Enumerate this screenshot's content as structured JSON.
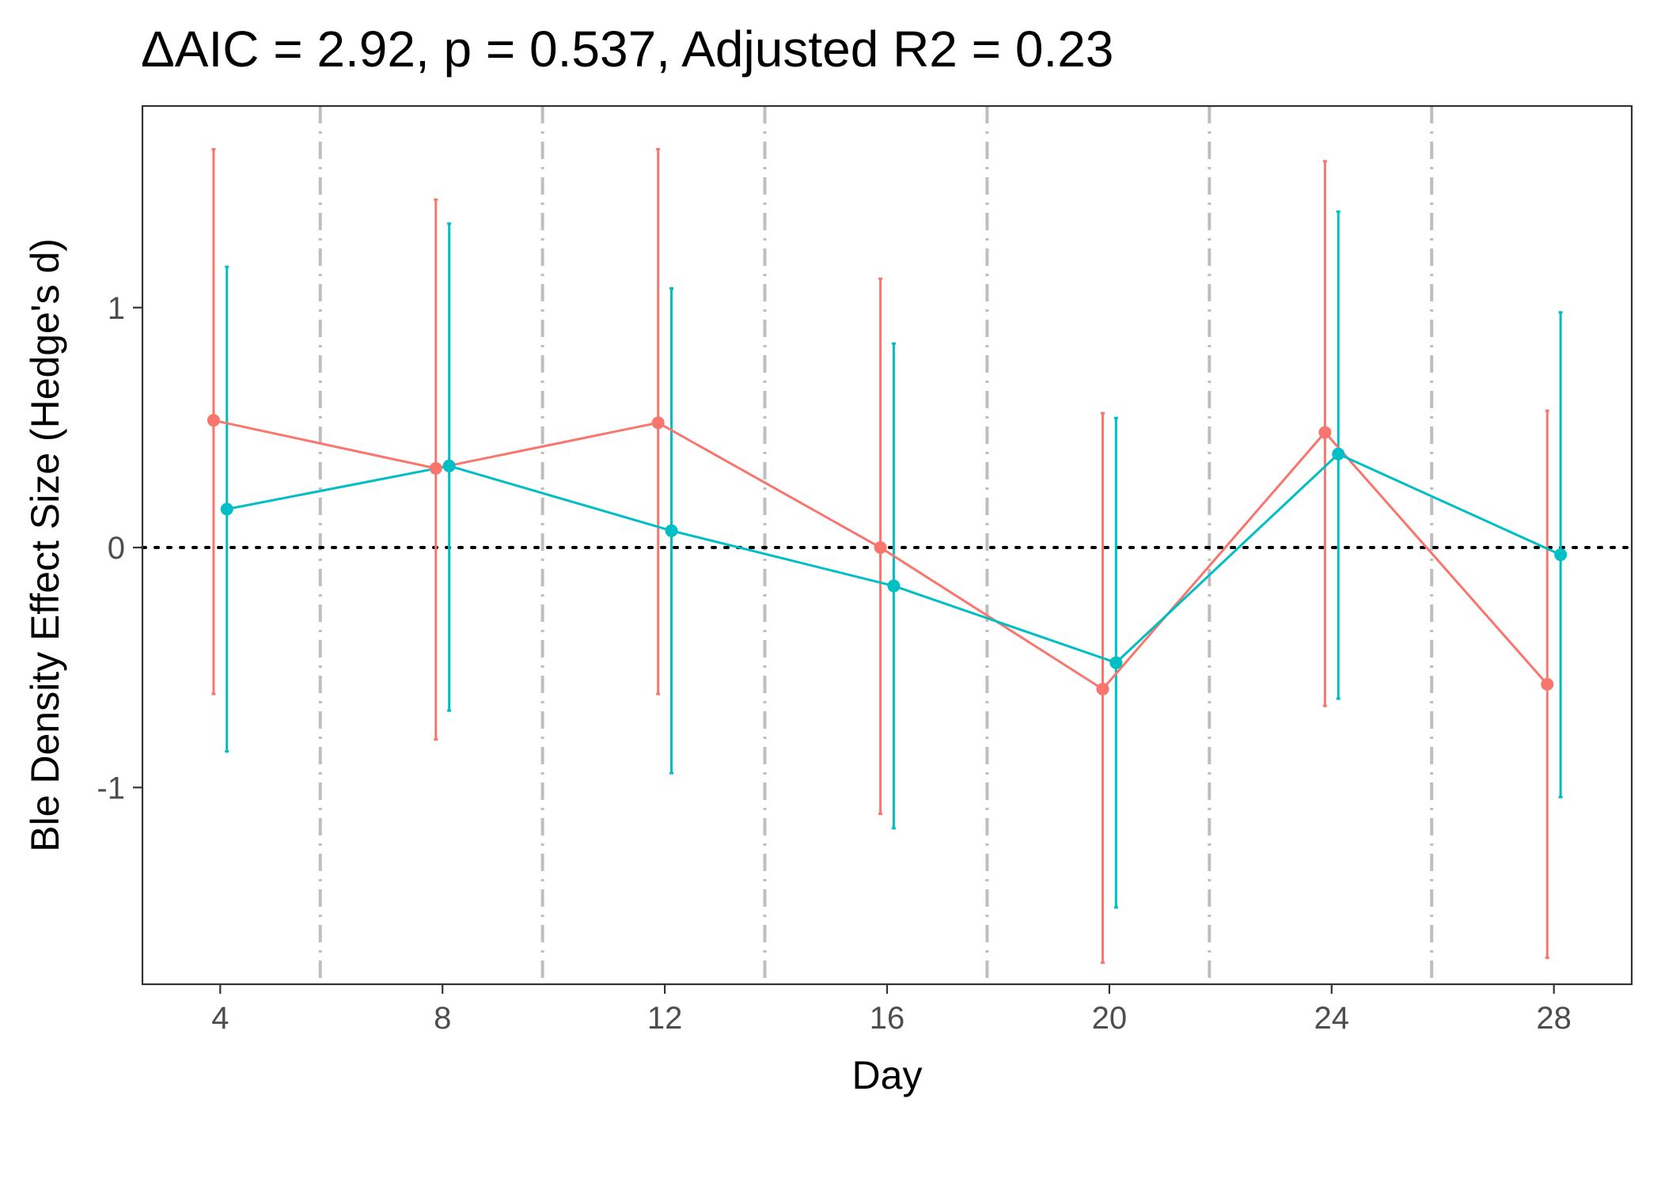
{
  "chart_data": {
    "type": "line",
    "title": "ΔAIC = 2.92, p = 0.537, Adjusted R2 = 0.23",
    "xlabel": "Day",
    "ylabel": "Ble Density Effect Size (Hedge's d)",
    "x_ticks": [
      "4",
      "8",
      "12",
      "16",
      "20",
      "24",
      "28"
    ],
    "y_ticks": [
      "-1",
      "0",
      "1"
    ],
    "xlim": [
      2.6,
      29.4
    ],
    "ylim": [
      -1.82,
      1.84
    ],
    "grid": false,
    "legend": "none",
    "reference_line_y": 0,
    "vertical_separators_x": [
      5.8,
      9.8,
      13.8,
      17.8,
      21.8,
      25.8
    ],
    "series": [
      {
        "color": "#F8766D",
        "x": [
          3.88,
          7.88,
          11.88,
          15.88,
          19.88,
          23.88,
          27.88
        ],
        "y": [
          0.53,
          0.33,
          0.52,
          0.0,
          -0.59,
          0.48,
          -0.57
        ],
        "ci_low": [
          -0.61,
          -0.8,
          -0.61,
          -1.11,
          -1.73,
          -0.66,
          -1.71
        ],
        "ci_high": [
          1.66,
          1.45,
          1.66,
          1.12,
          0.56,
          1.61,
          0.57
        ]
      },
      {
        "color": "#00BFC4",
        "x": [
          4.12,
          8.12,
          12.12,
          16.12,
          20.12,
          24.12,
          28.12
        ],
        "y": [
          0.16,
          0.34,
          0.07,
          -0.16,
          -0.48,
          0.39,
          -0.03
        ],
        "ci_low": [
          -0.85,
          -0.68,
          -0.94,
          -1.17,
          -1.5,
          -0.63,
          -1.04
        ],
        "ci_high": [
          1.17,
          1.35,
          1.08,
          0.85,
          0.54,
          1.4,
          0.98
        ]
      }
    ]
  }
}
